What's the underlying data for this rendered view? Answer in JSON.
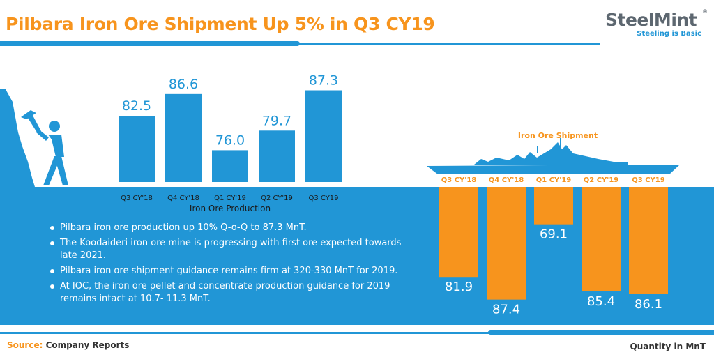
{
  "header": {
    "title": "Pilbara Iron Ore Shipment Up 5% in Q3 CY19"
  },
  "logo": {
    "wordmark": "SteelMint",
    "tagline": "Steeling is Basic",
    "registered_mark": "®"
  },
  "bullets": [
    "Pilbara iron ore production up 10% Q-o-Q to 87.3 MnT.",
    "The Koodaideri iron ore mine is progressing with first ore expected towards late 2021.",
    "Pilbara iron ore shipment guidance remains firm at 320-330 MnT for 2019.",
    "At IOC, the iron ore pellet and concentrate production guidance for 2019 remains intact at 10.7- 11.3 MnT."
  ],
  "footer": {
    "source_label": "Source:",
    "source_value": "Company Reports",
    "unit_note": "Quantity in MnT"
  },
  "colors": {
    "production_bar": "#2196d6",
    "shipment_bar": "#f7941d",
    "sea": "#2196d6",
    "title": "#f7941d"
  },
  "icons": [
    "miner-with-pickaxe-illustration",
    "cargo-ship-silhouette"
  ],
  "chart_data": [
    {
      "type": "bar",
      "title": "",
      "xlabel": "Iron Ore Production",
      "ylabel": "",
      "categories": [
        "Q3 CY'18",
        "Q4 CY'18",
        "Q1 CY'19",
        "Q2 CY'19",
        "Q3 CY19"
      ],
      "values": [
        82.5,
        86.6,
        76.0,
        79.7,
        87.3
      ],
      "value_labels": [
        "82.5",
        "86.6",
        "76.0",
        "79.7",
        "87.3"
      ],
      "unit": "MnT",
      "grid": false,
      "axis_min": 70
    },
    {
      "type": "bar",
      "title": "Iron Ore Shipment",
      "xlabel": "",
      "ylabel": "",
      "orientation": "downward",
      "categories": [
        "Q3 CY'18",
        "Q4 CY'18",
        "Q1 CY'19",
        "Q2 CY'19",
        "Q3 CY19"
      ],
      "values": [
        81.9,
        87.4,
        69.1,
        85.4,
        86.1
      ],
      "value_labels": [
        "81.9",
        "87.4",
        "69.1",
        "85.4",
        "86.1"
      ],
      "unit": "MnT",
      "grid": false,
      "axis_min": 60
    }
  ]
}
